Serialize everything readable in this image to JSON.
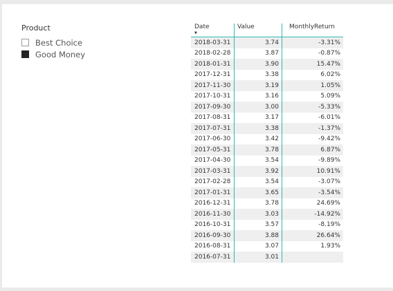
{
  "slicer": {
    "title": "Product",
    "items": [
      {
        "label": "Best Choice",
        "checked": false
      },
      {
        "label": "Good Money",
        "checked": true
      }
    ]
  },
  "table": {
    "columns": [
      "Date",
      "Value",
      "MonthlyReturn"
    ],
    "sorted_column": "Date",
    "sort_direction": "descending",
    "rows": [
      [
        "2018-03-31",
        "3.74",
        "-3.31%"
      ],
      [
        "2018-02-28",
        "3.87",
        "-0.87%"
      ],
      [
        "2018-01-31",
        "3.90",
        "15.47%"
      ],
      [
        "2017-12-31",
        "3.38",
        "6.02%"
      ],
      [
        "2017-11-30",
        "3.19",
        "1.05%"
      ],
      [
        "2017-10-31",
        "3.16",
        "5.09%"
      ],
      [
        "2017-09-30",
        "3.00",
        "-5.33%"
      ],
      [
        "2017-08-31",
        "3.17",
        "-6.01%"
      ],
      [
        "2017-07-31",
        "3.38",
        "-1.37%"
      ],
      [
        "2017-06-30",
        "3.42",
        "-9.42%"
      ],
      [
        "2017-05-31",
        "3.78",
        "6.87%"
      ],
      [
        "2017-04-30",
        "3.54",
        "-9.89%"
      ],
      [
        "2017-03-31",
        "3.92",
        "10.91%"
      ],
      [
        "2017-02-28",
        "3.54",
        "-3.07%"
      ],
      [
        "2017-01-31",
        "3.65",
        "-3.54%"
      ],
      [
        "2016-12-31",
        "3.78",
        "24.69%"
      ],
      [
        "2016-11-30",
        "3.03",
        "-14.92%"
      ],
      [
        "2016-10-31",
        "3.57",
        "-8.19%"
      ],
      [
        "2016-09-30",
        "3.88",
        "26.64%"
      ],
      [
        "2016-08-31",
        "3.07",
        "1.93%"
      ],
      [
        "2016-07-31",
        "3.01",
        ""
      ]
    ]
  },
  "colors": {
    "accent": "#2fb8b2",
    "checked_box": "#252423"
  }
}
